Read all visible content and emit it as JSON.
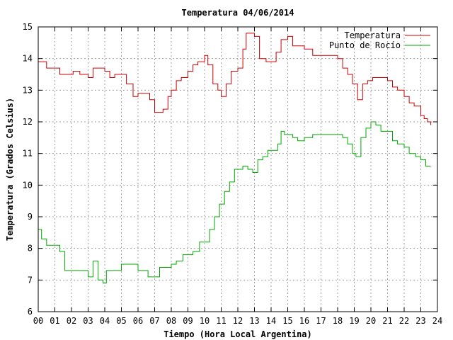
{
  "chart_data": {
    "type": "line",
    "title": "Temperatura 04/06/2014",
    "xlabel": "Tiempo (Hora Local Argentina)",
    "ylabel": "Temperatura (Grados Celsius)",
    "xlim": [
      0,
      24
    ],
    "ylim": [
      6,
      15
    ],
    "grid": true,
    "legend_position": "top-right",
    "x_ticks": [
      "00",
      "01",
      "02",
      "03",
      "04",
      "05",
      "06",
      "07",
      "08",
      "09",
      "10",
      "11",
      "12",
      "13",
      "14",
      "15",
      "16",
      "17",
      "18",
      "19",
      "20",
      "21",
      "22",
      "23",
      "24"
    ],
    "y_ticks": [
      "6",
      "7",
      "8",
      "9",
      "10",
      "11",
      "12",
      "13",
      "14",
      "15"
    ],
    "series": [
      {
        "name": "Temperatura",
        "color": "#cc0000",
        "x": [
          0.0,
          0.3,
          0.5,
          0.9,
          1.3,
          1.6,
          2.1,
          2.5,
          3.0,
          3.3,
          3.6,
          4.0,
          4.3,
          4.6,
          5.0,
          5.3,
          5.7,
          6.0,
          6.3,
          6.7,
          7.0,
          7.2,
          7.5,
          7.8,
          8.0,
          8.3,
          8.6,
          9.0,
          9.3,
          9.6,
          10.0,
          10.2,
          10.5,
          10.8,
          11.0,
          11.3,
          11.6,
          12.0,
          12.3,
          12.5,
          13.0,
          13.3,
          13.7,
          14.0,
          14.3,
          14.6,
          14.8,
          15.0,
          15.3,
          15.6,
          16.0,
          16.5,
          17.0,
          17.5,
          18.0,
          18.3,
          18.6,
          18.9,
          19.2,
          19.5,
          19.8,
          20.1,
          20.4,
          20.7,
          21.0,
          21.3,
          21.6,
          22.0,
          22.3,
          22.6,
          23.0,
          23.2,
          23.4,
          23.6
        ],
        "y": [
          13.9,
          13.9,
          13.7,
          13.7,
          13.5,
          13.5,
          13.6,
          13.5,
          13.4,
          13.7,
          13.7,
          13.6,
          13.4,
          13.5,
          13.5,
          13.2,
          12.8,
          12.9,
          12.9,
          12.7,
          12.3,
          12.3,
          12.4,
          12.8,
          13.0,
          13.3,
          13.4,
          13.6,
          13.8,
          13.9,
          14.1,
          13.8,
          13.2,
          13.0,
          12.8,
          13.2,
          13.6,
          13.7,
          14.3,
          14.8,
          14.7,
          14.0,
          13.9,
          13.9,
          14.2,
          14.6,
          14.6,
          14.7,
          14.4,
          14.4,
          14.3,
          14.1,
          14.1,
          14.1,
          14.0,
          13.7,
          13.5,
          13.2,
          12.7,
          13.2,
          13.3,
          13.4,
          13.4,
          13.4,
          13.3,
          13.1,
          13.0,
          12.8,
          12.6,
          12.5,
          12.2,
          12.1,
          12.0,
          11.9
        ]
      },
      {
        "name": "Punto de Rocío",
        "color": "#00aa00",
        "x": [
          0.0,
          0.2,
          0.5,
          0.8,
          1.0,
          1.3,
          1.6,
          2.0,
          2.5,
          3.0,
          3.3,
          3.6,
          3.9,
          4.1,
          4.4,
          4.7,
          5.0,
          5.3,
          5.7,
          6.0,
          6.3,
          6.6,
          7.0,
          7.3,
          7.6,
          8.0,
          8.3,
          8.7,
          9.0,
          9.3,
          9.7,
          10.0,
          10.3,
          10.6,
          10.9,
          11.2,
          11.5,
          11.8,
          12.1,
          12.3,
          12.6,
          12.9,
          13.2,
          13.5,
          13.8,
          14.1,
          14.4,
          14.6,
          14.8,
          15.0,
          15.3,
          15.6,
          16.0,
          16.5,
          17.0,
          17.5,
          18.0,
          18.3,
          18.6,
          18.9,
          19.1,
          19.4,
          19.7,
          20.0,
          20.3,
          20.6,
          21.0,
          21.3,
          21.6,
          22.0,
          22.3,
          22.7,
          23.0,
          23.3,
          23.6
        ],
        "y": [
          8.6,
          8.3,
          8.1,
          8.1,
          8.1,
          7.9,
          7.3,
          7.3,
          7.3,
          7.1,
          7.6,
          7.0,
          6.9,
          7.3,
          7.3,
          7.3,
          7.5,
          7.5,
          7.5,
          7.3,
          7.3,
          7.1,
          7.1,
          7.4,
          7.4,
          7.5,
          7.6,
          7.8,
          7.8,
          7.9,
          8.2,
          8.2,
          8.6,
          9.0,
          9.4,
          9.8,
          10.1,
          10.5,
          10.5,
          10.6,
          10.5,
          10.4,
          10.8,
          10.9,
          11.1,
          11.1,
          11.3,
          11.7,
          11.6,
          11.6,
          11.5,
          11.4,
          11.5,
          11.6,
          11.6,
          11.6,
          11.6,
          11.5,
          11.3,
          11.0,
          10.9,
          11.5,
          11.8,
          12.0,
          11.9,
          11.7,
          11.7,
          11.4,
          11.3,
          11.2,
          11.0,
          10.9,
          10.8,
          10.6,
          10.6
        ]
      }
    ]
  }
}
